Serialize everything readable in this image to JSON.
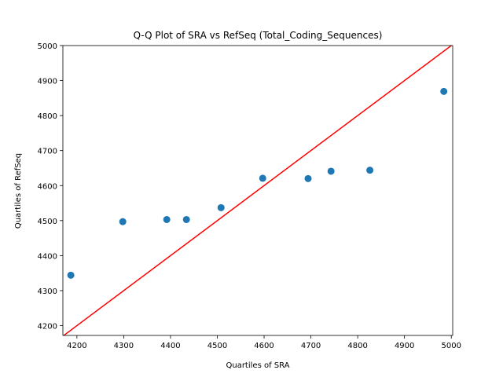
{
  "chart_data": {
    "type": "scatter",
    "title": "Q-Q Plot of SRA vs RefSeq (Total_Coding_Sequences)",
    "xlabel": "Quartiles of SRA",
    "ylabel": "Quartiles of RefSeq",
    "xlim": [
      4170,
      5003
    ],
    "ylim": [
      4172,
      5000
    ],
    "xticks": [
      4200,
      4300,
      4400,
      4500,
      4600,
      4700,
      4800,
      4900,
      5000
    ],
    "yticks": [
      4200,
      4300,
      4400,
      4500,
      4600,
      4700,
      4800,
      4900,
      5000
    ],
    "grid": false,
    "points": [
      {
        "x": 4187,
        "y": 4344
      },
      {
        "x": 4298,
        "y": 4497
      },
      {
        "x": 4392,
        "y": 4503
      },
      {
        "x": 4434,
        "y": 4503
      },
      {
        "x": 4508,
        "y": 4537
      },
      {
        "x": 4597,
        "y": 4621
      },
      {
        "x": 4694,
        "y": 4620
      },
      {
        "x": 4743,
        "y": 4641
      },
      {
        "x": 4826,
        "y": 4644
      },
      {
        "x": 4984,
        "y": 4869
      }
    ],
    "reference_line": {
      "from": 4170,
      "to": 5003
    },
    "colors": {
      "points": "#1f77b4",
      "reference_line": "#ff0000",
      "axes": "#000000"
    }
  }
}
